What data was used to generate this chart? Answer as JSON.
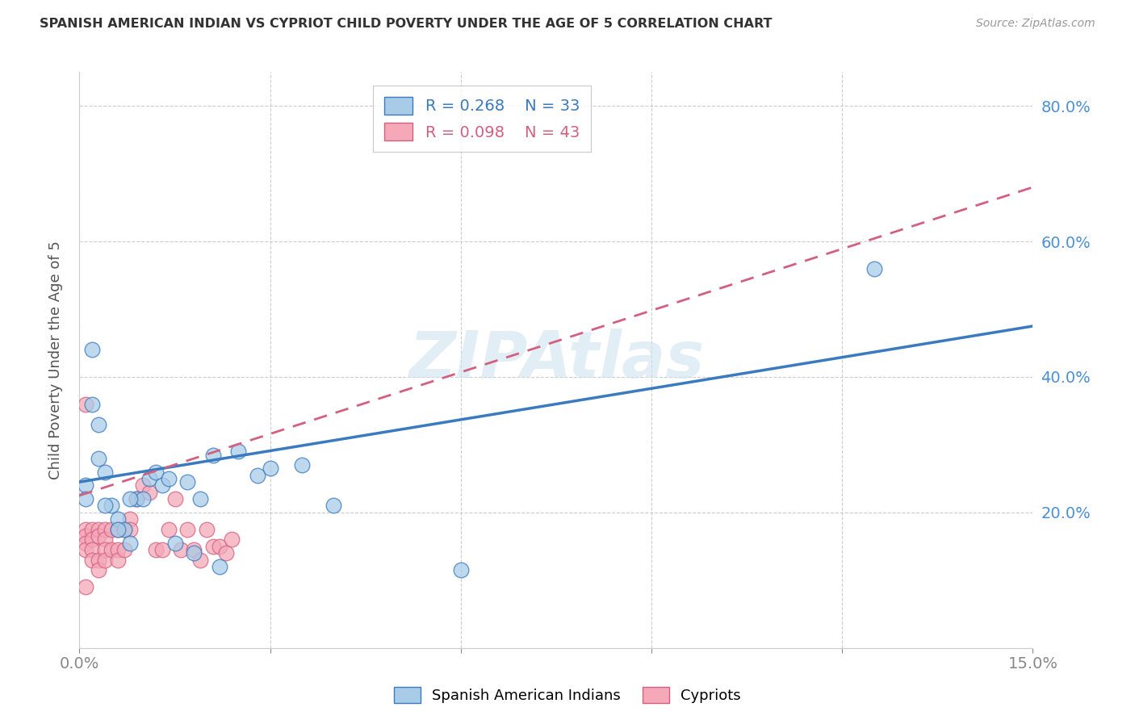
{
  "title": "SPANISH AMERICAN INDIAN VS CYPRIOT CHILD POVERTY UNDER THE AGE OF 5 CORRELATION CHART",
  "source": "Source: ZipAtlas.com",
  "ylabel": "Child Poverty Under the Age of 5",
  "xlim": [
    0.0,
    0.15
  ],
  "ylim": [
    0.0,
    0.85
  ],
  "ytick_positions": [
    0.0,
    0.2,
    0.4,
    0.6,
    0.8
  ],
  "xtick_positions": [
    0.0,
    0.03,
    0.06,
    0.09,
    0.12,
    0.15
  ],
  "xtick_labels": [
    "0.0%",
    "",
    "",
    "",
    "",
    "15.0%"
  ],
  "right_ytick_labels": [
    "20.0%",
    "40.0%",
    "60.0%",
    "80.0%"
  ],
  "legend_R1": "R = 0.268",
  "legend_N1": "N = 33",
  "legend_R2": "R = 0.098",
  "legend_N2": "N = 43",
  "blue_color": "#a8cce8",
  "pink_color": "#f4a8b8",
  "blue_line_color": "#3a7abf",
  "pink_line_color": "#d46080",
  "axis_label_color": "#4a90d9",
  "tick_label_color": "#4a90d9",
  "watermark": "ZIPAtlas",
  "watermark_color": "#d0e4f0",
  "blue_x": [
    0.001,
    0.001,
    0.002,
    0.003,
    0.003,
    0.004,
    0.005,
    0.006,
    0.007,
    0.008,
    0.009,
    0.01,
    0.011,
    0.012,
    0.013,
    0.015,
    0.017,
    0.019,
    0.021,
    0.025,
    0.028,
    0.03,
    0.035,
    0.04,
    0.06,
    0.125,
    0.002,
    0.004,
    0.006,
    0.008,
    0.014,
    0.018,
    0.022
  ],
  "blue_y": [
    0.24,
    0.22,
    0.44,
    0.33,
    0.28,
    0.26,
    0.21,
    0.19,
    0.175,
    0.155,
    0.22,
    0.22,
    0.25,
    0.26,
    0.24,
    0.155,
    0.245,
    0.22,
    0.285,
    0.29,
    0.255,
    0.265,
    0.27,
    0.21,
    0.115,
    0.56,
    0.36,
    0.21,
    0.175,
    0.22,
    0.25,
    0.14,
    0.12
  ],
  "pink_x": [
    0.001,
    0.001,
    0.001,
    0.001,
    0.001,
    0.002,
    0.002,
    0.002,
    0.002,
    0.003,
    0.003,
    0.003,
    0.003,
    0.004,
    0.004,
    0.004,
    0.004,
    0.005,
    0.005,
    0.006,
    0.006,
    0.006,
    0.007,
    0.007,
    0.008,
    0.008,
    0.009,
    0.01,
    0.011,
    0.012,
    0.013,
    0.014,
    0.015,
    0.016,
    0.017,
    0.018,
    0.019,
    0.02,
    0.021,
    0.022,
    0.023,
    0.024,
    0.001
  ],
  "pink_y": [
    0.175,
    0.165,
    0.155,
    0.145,
    0.09,
    0.175,
    0.16,
    0.145,
    0.13,
    0.175,
    0.165,
    0.13,
    0.115,
    0.175,
    0.16,
    0.145,
    0.13,
    0.175,
    0.145,
    0.175,
    0.145,
    0.13,
    0.175,
    0.145,
    0.19,
    0.175,
    0.22,
    0.24,
    0.23,
    0.145,
    0.145,
    0.175,
    0.22,
    0.145,
    0.175,
    0.145,
    0.13,
    0.175,
    0.15,
    0.15,
    0.14,
    0.16,
    0.36
  ],
  "background_color": "#ffffff",
  "grid_color": "#cccccc",
  "grid_linestyle": "--",
  "blue_line_y0": 0.245,
  "blue_line_y1": 0.475,
  "pink_line_y0": 0.225,
  "pink_line_y1": 0.68
}
